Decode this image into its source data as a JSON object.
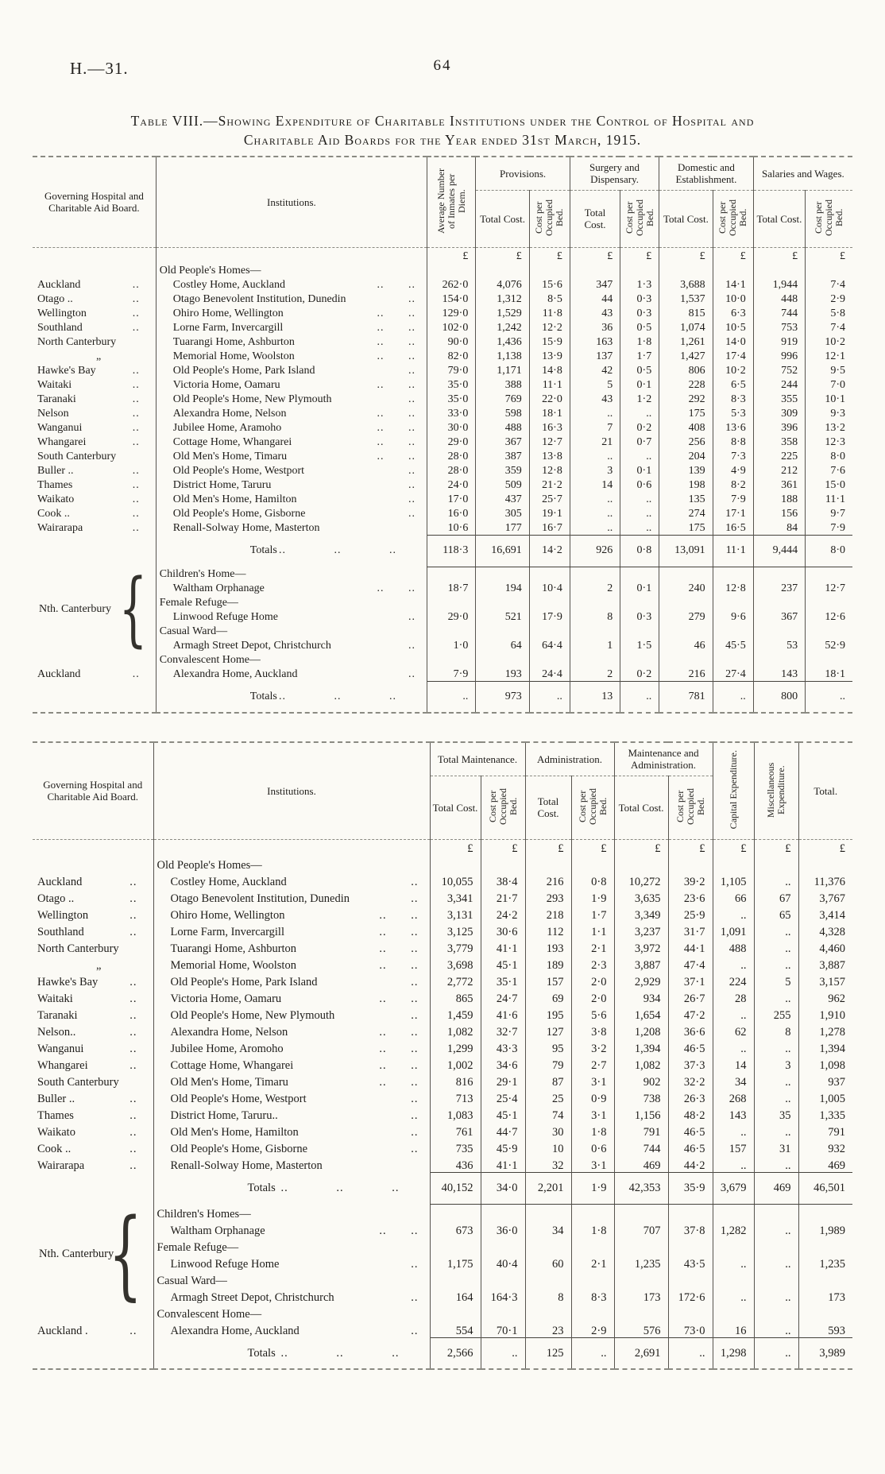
{
  "page": {
    "doc_ref": "H.—31.",
    "page_number": "64"
  },
  "title": {
    "line1": "Table VIII.—Showing Expenditure of Charitable Institutions under the Control of Hospital and",
    "line2": "Charitable Aid Boards for the Year ended 31st March, 1915."
  },
  "shared": {
    "board_header": "Governing Hospital and Charitable Aid Board.",
    "institutions_header": "Institutions.",
    "total_cost": "Total Cost.",
    "cost_per_bed": "Cost per Occupied Bed.",
    "currency": "£"
  },
  "table1": {
    "avg_header": "Average Number of Inmates per Diem.",
    "groups": [
      "Provisions.",
      "Surgery and Dispensary.",
      "Domestic and Establishment.",
      "Salaries and Wages."
    ],
    "rows": [
      {
        "t": "c"
      },
      {
        "t": "g",
        "b": "",
        "i": "Old People's Homes—"
      },
      {
        "t": "d",
        "b": "Auckland",
        "bt": "..",
        "i": "Costley Home, Auckland",
        "it": ".. ..",
        "v": [
          "262·0",
          "4,076",
          "15·6",
          "347",
          "1·3",
          "3,688",
          "14·1",
          "1,944",
          "7·4"
        ]
      },
      {
        "t": "d",
        "b": "Otago ..",
        "bt": "..",
        "i": "Otago Benevolent Institution, Dunedin",
        "it": "..",
        "v": [
          "154·0",
          "1,312",
          "8·5",
          "44",
          "0·3",
          "1,537",
          "10·0",
          "448",
          "2·9"
        ]
      },
      {
        "t": "d",
        "b": "Wellington",
        "bt": "..",
        "i": "Ohiro Home, Wellington",
        "it": ".. ..",
        "v": [
          "129·0",
          "1,529",
          "11·8",
          "43",
          "0·3",
          "815",
          "6·3",
          "744",
          "5·8"
        ]
      },
      {
        "t": "d",
        "b": "Southland",
        "bt": "..",
        "i": "Lorne Farm, Invercargill",
        "it": ".. ..",
        "v": [
          "102·0",
          "1,242",
          "12·2",
          "36",
          "0·5",
          "1,074",
          "10·5",
          "753",
          "7·4"
        ]
      },
      {
        "t": "d",
        "b": "North Canterbury",
        "bt": "",
        "i": "Tuarangi Home, Ashburton",
        "it": ".. ..",
        "v": [
          "90·0",
          "1,436",
          "15·9",
          "163",
          "1·8",
          "1,261",
          "14·0",
          "919",
          "10·2"
        ]
      },
      {
        "t": "d",
        "b": "„",
        "bt": "",
        "i": "Memorial Home, Woolston",
        "it": ".. ..",
        "v": [
          "82·0",
          "1,138",
          "13·9",
          "137",
          "1·7",
          "1,427",
          "17·4",
          "996",
          "12·1"
        ]
      },
      {
        "t": "d",
        "b": "Hawke's Bay",
        "bt": "..",
        "i": "Old People's Home, Park Island",
        "it": "..",
        "v": [
          "79·0",
          "1,171",
          "14·8",
          "42",
          "0·5",
          "806",
          "10·2",
          "752",
          "9·5"
        ]
      },
      {
        "t": "d",
        "b": "Waitaki",
        "bt": "..",
        "i": "Victoria Home, Oamaru",
        "it": ".. ..",
        "v": [
          "35·0",
          "388",
          "11·1",
          "5",
          "0·1",
          "228",
          "6·5",
          "244",
          "7·0"
        ]
      },
      {
        "t": "d",
        "b": "Taranaki",
        "bt": "..",
        "i": "Old People's Home, New Plymouth",
        "it": "..",
        "v": [
          "35·0",
          "769",
          "22·0",
          "43",
          "1·2",
          "292",
          "8·3",
          "355",
          "10·1"
        ]
      },
      {
        "t": "d",
        "b": "Nelson",
        "bt": "..",
        "i": "Alexandra Home, Nelson",
        "it": ".. ..",
        "v": [
          "33·0",
          "598",
          "18·1",
          "..",
          "..",
          "175",
          "5·3",
          "309",
          "9·3"
        ]
      },
      {
        "t": "d",
        "b": "Wanganui",
        "bt": "..",
        "i": "Jubilee Home, Aramoho",
        "it": ".. ..",
        "v": [
          "30·0",
          "488",
          "16·3",
          "7",
          "0·2",
          "408",
          "13·6",
          "396",
          "13·2"
        ]
      },
      {
        "t": "d",
        "b": "Whangarei",
        "bt": "..",
        "i": "Cottage Home, Whangarei",
        "it": ".. ..",
        "v": [
          "29·0",
          "367",
          "12·7",
          "21",
          "0·7",
          "256",
          "8·8",
          "358",
          "12·3"
        ]
      },
      {
        "t": "d",
        "b": "South Canterbury",
        "bt": "",
        "i": "Old Men's Home, Timaru",
        "it": ".. ..",
        "v": [
          "28·0",
          "387",
          "13·8",
          "..",
          "..",
          "204",
          "7·3",
          "225",
          "8·0"
        ]
      },
      {
        "t": "d",
        "b": "Buller ..",
        "bt": "..",
        "i": "Old People's Home, Westport",
        "it": "..",
        "v": [
          "28·0",
          "359",
          "12·8",
          "3",
          "0·1",
          "139",
          "4·9",
          "212",
          "7·6"
        ]
      },
      {
        "t": "d",
        "b": "Thames",
        "bt": "..",
        "i": "District Home, Taruru",
        "it": "..",
        "v": [
          "24·0",
          "509",
          "21·2",
          "14",
          "0·6",
          "198",
          "8·2",
          "361",
          "15·0"
        ]
      },
      {
        "t": "d",
        "b": "Waikato",
        "bt": "..",
        "i": "Old Men's Home, Hamilton",
        "it": "..",
        "v": [
          "17·0",
          "437",
          "25·7",
          "..",
          "..",
          "135",
          "7·9",
          "188",
          "11·1"
        ]
      },
      {
        "t": "d",
        "b": "Cook ..",
        "bt": "..",
        "i": "Old People's Home, Gisborne",
        "it": "..",
        "v": [
          "16·0",
          "305",
          "19·1",
          "..",
          "..",
          "274",
          "17·1",
          "156",
          "9·7"
        ]
      },
      {
        "t": "d",
        "b": "Wairarapa",
        "bt": "..",
        "i": "Renall-Solway Home, Masterton",
        "it": "",
        "v": [
          "10·6",
          "177",
          "16·7",
          "..",
          "..",
          "175",
          "16·5",
          "84",
          "7·9"
        ]
      },
      {
        "t": "t",
        "b": "",
        "i": "Totals",
        "it": ".. .. ..",
        "v": [
          "118·3",
          "16,691",
          "14·2",
          "926",
          "0·8",
          "13,091",
          "11·1",
          "9,444",
          "8·0"
        ]
      },
      {
        "t": "g",
        "b": "Nth. Canterbury",
        "brace": true,
        "bspan": 6,
        "i": "Children's Home—"
      },
      {
        "t": "d",
        "skipb": true,
        "i": "Waltham Orphanage",
        "it": ".. ..",
        "v": [
          "18·7",
          "194",
          "10·4",
          "2",
          "0·1",
          "240",
          "12·8",
          "237",
          "12·7"
        ]
      },
      {
        "t": "g",
        "skipb": true,
        "i": "Female Refuge—"
      },
      {
        "t": "d",
        "skipb": true,
        "i": "Linwood Refuge Home",
        "it": "..",
        "v": [
          "29·0",
          "521",
          "17·9",
          "8",
          "0·3",
          "279",
          "9·6",
          "367",
          "12·6"
        ]
      },
      {
        "t": "g",
        "skipb": true,
        "i": "Casual Ward—"
      },
      {
        "t": "d",
        "skipb": true,
        "i": "Armagh Street Depot, Christchurch",
        "it": "..",
        "v": [
          "1·0",
          "64",
          "64·4",
          "1",
          "1·5",
          "46",
          "45·5",
          "53",
          "52·9"
        ]
      },
      {
        "t": "g",
        "b": "",
        "i": "Convalescent Home—"
      },
      {
        "t": "d",
        "b": "Auckland",
        "bt": "..",
        "i": "Alexandra Home, Auckland",
        "it": "..",
        "v": [
          "7·9",
          "193",
          "24·4",
          "2",
          "0·2",
          "216",
          "27·4",
          "143",
          "18·1"
        ]
      },
      {
        "t": "t",
        "b": "",
        "i": "Totals",
        "it": ".. .. ..",
        "v": [
          "..",
          "973",
          "..",
          "13",
          "..",
          "781",
          "..",
          "800",
          ".."
        ]
      }
    ]
  },
  "table2": {
    "groups": [
      "Total Maintenance.",
      "Administration.",
      "Maintenance and Administration."
    ],
    "capital_header": "Capital Expenditure.",
    "misc_header": "Miscellaneous Expenditure.",
    "total_header": "Total.",
    "rows": [
      {
        "t": "c"
      },
      {
        "t": "g",
        "b": "",
        "i": "Old People's Homes—"
      },
      {
        "t": "d",
        "b": "Auckland",
        "bt": "..",
        "i": "Costley Home, Auckland",
        "it": "..",
        "v": [
          "10,055",
          "38·4",
          "216",
          "0·8",
          "10,272",
          "39·2",
          "1,105",
          "..",
          "11,376"
        ]
      },
      {
        "t": "d",
        "b": "Otago ..",
        "bt": "..",
        "i": "Otago Benevolent Institution, Dunedin",
        "it": "..",
        "v": [
          "3,341",
          "21·7",
          "293",
          "1·9",
          "3,635",
          "23·6",
          "66",
          "67",
          "3,767"
        ]
      },
      {
        "t": "d",
        "b": "Wellington",
        "bt": "..",
        "i": "Ohiro Home, Wellington",
        "it": ".. ..",
        "v": [
          "3,131",
          "24·2",
          "218",
          "1·7",
          "3,349",
          "25·9",
          "..",
          "65",
          "3,414"
        ]
      },
      {
        "t": "d",
        "b": "Southland",
        "bt": "..",
        "i": "Lorne Farm, Invercargill",
        "it": ".. ..",
        "v": [
          "3,125",
          "30·6",
          "112",
          "1·1",
          "3,237",
          "31·7",
          "1,091",
          "..",
          "4,328"
        ]
      },
      {
        "t": "d",
        "b": "North Canterbury",
        "bt": "",
        "i": "Tuarangi Home, Ashburton",
        "it": ".. ..",
        "v": [
          "3,779",
          "41·1",
          "193",
          "2·1",
          "3,972",
          "44·1",
          "488",
          "..",
          "4,460"
        ]
      },
      {
        "t": "d",
        "b": "„",
        "bt": "",
        "i": "Memorial Home, Woolston",
        "it": ".. ..",
        "v": [
          "3,698",
          "45·1",
          "189",
          "2·3",
          "3,887",
          "47·4",
          "..",
          "..",
          "3,887"
        ]
      },
      {
        "t": "d",
        "b": "Hawke's Bay",
        "bt": "..",
        "i": "Old People's Home, Park Island",
        "it": "..",
        "v": [
          "2,772",
          "35·1",
          "157",
          "2·0",
          "2,929",
          "37·1",
          "224",
          "5",
          "3,157"
        ]
      },
      {
        "t": "d",
        "b": "Waitaki",
        "bt": "..",
        "i": "Victoria Home, Oamaru",
        "it": ".. ..",
        "v": [
          "865",
          "24·7",
          "69",
          "2·0",
          "934",
          "26·7",
          "28",
          "..",
          "962"
        ]
      },
      {
        "t": "d",
        "b": "Taranaki",
        "bt": "..",
        "i": "Old People's Home, New Plymouth",
        "it": "..",
        "v": [
          "1,459",
          "41·6",
          "195",
          "5·6",
          "1,654",
          "47·2",
          "..",
          "255",
          "1,910"
        ]
      },
      {
        "t": "d",
        "b": "Nelson..",
        "bt": "..",
        "i": "Alexandra Home, Nelson",
        "it": ".. ..",
        "v": [
          "1,082",
          "32·7",
          "127",
          "3·8",
          "1,208",
          "36·6",
          "62",
          "8",
          "1,278"
        ]
      },
      {
        "t": "d",
        "b": "Wanganui",
        "bt": "..",
        "i": "Jubilee Home, Aromoho",
        "it": ".. ..",
        "v": [
          "1,299",
          "43·3",
          "95",
          "3·2",
          "1,394",
          "46·5",
          "..",
          "..",
          "1,394"
        ]
      },
      {
        "t": "d",
        "b": "Whangarei",
        "bt": "..",
        "i": "Cottage Home, Whangarei",
        "it": ".. ..",
        "v": [
          "1,002",
          "34·6",
          "79",
          "2·7",
          "1,082",
          "37·3",
          "14",
          "3",
          "1,098"
        ]
      },
      {
        "t": "d",
        "b": "South Canterbury",
        "bt": "",
        "i": "Old Men's Home, Timaru",
        "it": ".. ..",
        "v": [
          "816",
          "29·1",
          "87",
          "3·1",
          "902",
          "32·2",
          "34",
          "..",
          "937"
        ]
      },
      {
        "t": "d",
        "b": "Buller ..",
        "bt": "..",
        "i": "Old People's Home, Westport",
        "it": "..",
        "v": [
          "713",
          "25·4",
          "25",
          "0·9",
          "738",
          "26·3",
          "268",
          "..",
          "1,005"
        ]
      },
      {
        "t": "d",
        "b": "Thames",
        "bt": "..",
        "i": "District Home, Taruru..",
        "it": "..",
        "v": [
          "1,083",
          "45·1",
          "74",
          "3·1",
          "1,156",
          "48·2",
          "143",
          "35",
          "1,335"
        ]
      },
      {
        "t": "d",
        "b": "Waikato",
        "bt": "..",
        "i": "Old Men's Home, Hamilton",
        "it": "..",
        "v": [
          "761",
          "44·7",
          "30",
          "1·8",
          "791",
          "46·5",
          "..",
          "..",
          "791"
        ]
      },
      {
        "t": "d",
        "b": "Cook ..",
        "bt": "..",
        "i": "Old People's Home, Gisborne",
        "it": "..",
        "v": [
          "735",
          "45·9",
          "10",
          "0·6",
          "744",
          "46·5",
          "157",
          "31",
          "932"
        ]
      },
      {
        "t": "d",
        "b": "Wairarapa",
        "bt": "..",
        "i": "Renall-Solway Home, Masterton",
        "it": "",
        "v": [
          "436",
          "41·1",
          "32",
          "3·1",
          "469",
          "44·2",
          "..",
          "..",
          "469"
        ]
      },
      {
        "t": "t",
        "b": "",
        "i": "Totals",
        "it": ".. .. ..",
        "v": [
          "40,152",
          "34·0",
          "2,201",
          "1·9",
          "42,353",
          "35·9",
          "3,679",
          "469",
          "46,501"
        ]
      },
      {
        "t": "g",
        "b": "Nth. Canterbury",
        "brace": true,
        "bspan": 6,
        "i": "Children's Homes—"
      },
      {
        "t": "d",
        "skipb": true,
        "i": "Waltham Orphanage",
        "it": ".. ..",
        "v": [
          "673",
          "36·0",
          "34",
          "1·8",
          "707",
          "37·8",
          "1,282",
          "..",
          "1,989"
        ]
      },
      {
        "t": "g",
        "skipb": true,
        "i": "Female Refuge—"
      },
      {
        "t": "d",
        "skipb": true,
        "i": "Linwood Refuge Home",
        "it": "..",
        "v": [
          "1,175",
          "40·4",
          "60",
          "2·1",
          "1,235",
          "43·5",
          "..",
          "..",
          "1,235"
        ]
      },
      {
        "t": "g",
        "skipb": true,
        "i": "Casual Ward—"
      },
      {
        "t": "d",
        "skipb": true,
        "i": "Armagh Street Depot, Christchurch",
        "it": "..",
        "v": [
          "164",
          "164·3",
          "8",
          "8·3",
          "173",
          "172·6",
          "..",
          "..",
          "173"
        ]
      },
      {
        "t": "g",
        "b": "",
        "i": "Convalescent Home—"
      },
      {
        "t": "d",
        "b": "Auckland .",
        "bt": "..",
        "i": "Alexandra Home, Auckland",
        "it": "..",
        "v": [
          "554",
          "70·1",
          "23",
          "2·9",
          "576",
          "73·0",
          "16",
          "..",
          "593"
        ]
      },
      {
        "t": "t",
        "b": "",
        "i": "Totals",
        "it": ".. .. ..",
        "v": [
          "2,566",
          "..",
          "125",
          "..",
          "2,691",
          "..",
          "1,298",
          "..",
          "3,989"
        ]
      }
    ]
  }
}
